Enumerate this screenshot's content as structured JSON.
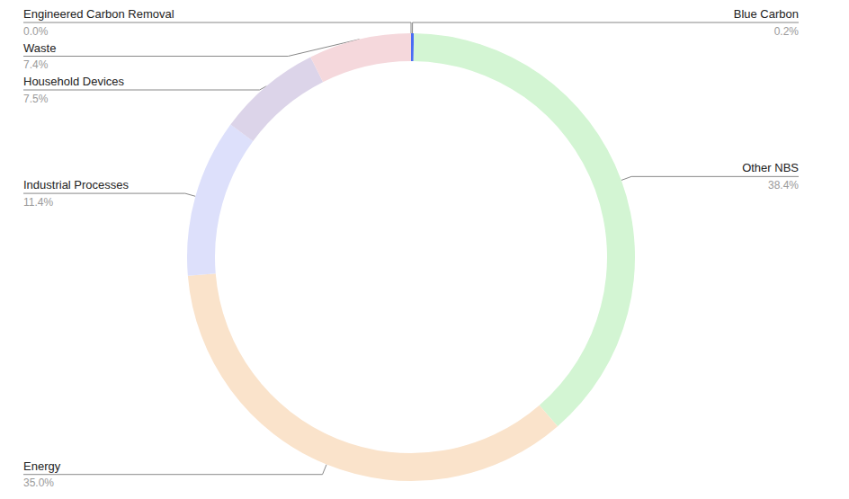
{
  "chart_data": {
    "type": "donut",
    "categories": [
      "Blue Carbon",
      "Other NBS",
      "Energy",
      "Industrial Processes",
      "Household Devices",
      "Waste",
      "Engineered Carbon Removal"
    ],
    "values": [
      0.2,
      38.4,
      35.0,
      11.4,
      7.5,
      7.4,
      0.0
    ],
    "value_labels": [
      "0.2%",
      "38.4%",
      "35.0%",
      "11.4%",
      "7.5%",
      "7.4%",
      "0.0%"
    ],
    "colors": [
      "#4a6cf4",
      "#d3f5d3",
      "#fae3cb",
      "#dde0fb",
      "#dcd4e9",
      "#f5d8dc",
      "#f2b84b"
    ],
    "data_labels": true
  }
}
